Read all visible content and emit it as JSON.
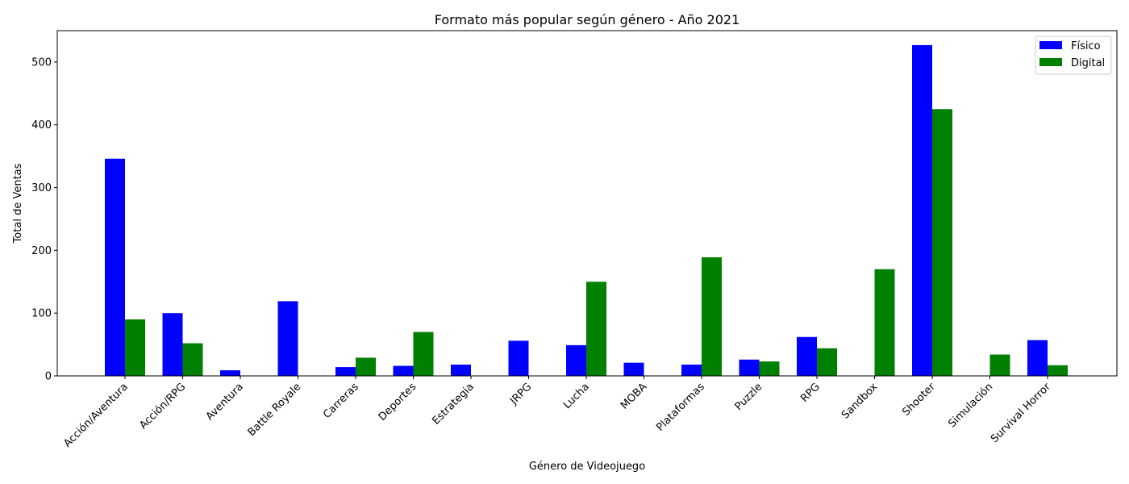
{
  "chart_data": {
    "type": "bar",
    "title": "Formato más popular según género - Año 2021",
    "xlabel": "Género de Videojuego",
    "ylabel": "Total de Ventas",
    "ylim": [
      0,
      550
    ],
    "yticks": [
      0,
      100,
      200,
      300,
      400,
      500
    ],
    "grid": false,
    "legend_position": "top-right",
    "categories": [
      "Acción/Aventura",
      "Acción/RPG",
      "Aventura",
      "Battle Royale",
      "Carreras",
      "Deportes",
      "Estrategia",
      "JRPG",
      "Lucha",
      "MOBA",
      "Plataformas",
      "Puzzle",
      "RPG",
      "Sandbox",
      "Shooter",
      "Simulación",
      "Survival Horror"
    ],
    "series": [
      {
        "name": "Físico",
        "color": "#0000ff",
        "values": [
          346,
          100,
          9,
          119,
          14,
          16,
          18,
          56,
          49,
          21,
          18,
          26,
          62,
          0,
          527,
          0,
          57
        ]
      },
      {
        "name": "Digital",
        "color": "#008000",
        "values": [
          90,
          52,
          0,
          0,
          29,
          70,
          0,
          0,
          150,
          0,
          189,
          23,
          44,
          170,
          425,
          34,
          17
        ]
      }
    ]
  }
}
